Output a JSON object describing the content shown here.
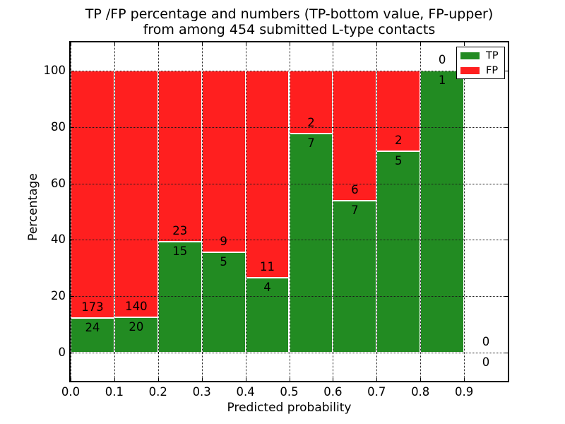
{
  "chart_data": {
    "type": "bar",
    "stacked": true,
    "title_lines": [
      "TP /FP percentage and numbers (TP-bottom value, FP-upper)",
      "from among 454 submitted L-type contacts"
    ],
    "xlabel": "Predicted probability",
    "ylabel": "Percentage",
    "total_contacts": 454,
    "bin_width": 0.1,
    "bins": [
      0.0,
      0.1,
      0.2,
      0.3,
      0.4,
      0.5,
      0.6,
      0.7,
      0.8,
      0.9
    ],
    "series": [
      {
        "name": "TP",
        "color": "#228b22",
        "values": [
          24,
          20,
          15,
          5,
          4,
          7,
          7,
          5,
          1,
          0
        ]
      },
      {
        "name": "FP",
        "color": "#ff1f1f",
        "values": [
          173,
          140,
          23,
          9,
          11,
          2,
          6,
          2,
          0,
          0
        ]
      }
    ],
    "tp_percent": [
      12.2,
      12.5,
      39.5,
      35.7,
      26.7,
      77.8,
      53.8,
      71.4,
      100.0,
      0.0
    ],
    "xticks": {
      "values": [
        0.0,
        0.1,
        0.2,
        0.3,
        0.4,
        0.5,
        0.6,
        0.7,
        0.8,
        0.9
      ],
      "labels": [
        "0.0",
        "0.1",
        "0.2",
        "0.3",
        "0.4",
        "0.5",
        "0.6",
        "0.7",
        "0.8",
        "0.9"
      ]
    },
    "yticks": {
      "values": [
        0,
        20,
        40,
        60,
        80,
        100
      ],
      "labels": [
        "0",
        "20",
        "40",
        "60",
        "80",
        "100"
      ]
    },
    "xlim": [
      0.0,
      1.0
    ],
    "ylim": [
      -10,
      110
    ],
    "grid": "dotted",
    "bar_edge_color": "#ffffff",
    "legend": {
      "position": "upper right",
      "entries": [
        {
          "label": "TP",
          "color": "#228b22"
        },
        {
          "label": "FP",
          "color": "#ff1f1f"
        }
      ]
    }
  }
}
